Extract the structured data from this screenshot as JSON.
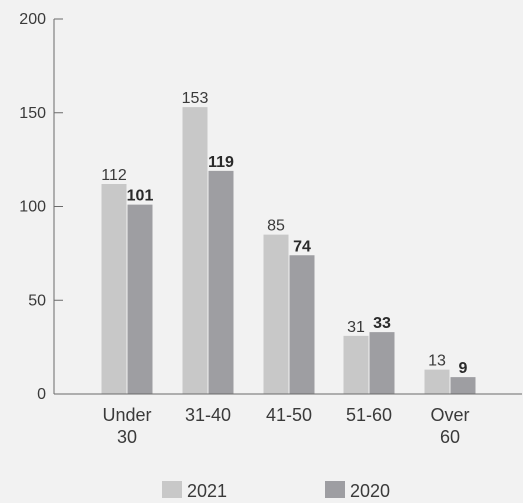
{
  "chart_data": {
    "type": "bar",
    "title": "",
    "xlabel": "",
    "ylabel": "",
    "ylim": [
      0,
      200
    ],
    "yticks": [
      0,
      50,
      100,
      150,
      200
    ],
    "categories": [
      [
        "Under",
        "30"
      ],
      [
        "31-40"
      ],
      [
        "41-50"
      ],
      [
        "51-60"
      ],
      [
        "Over",
        "60"
      ]
    ],
    "series": [
      {
        "name": "2021",
        "values": [
          112,
          153,
          85,
          31,
          13
        ],
        "color": "#c8c8c8",
        "label_bold": false
      },
      {
        "name": "2020",
        "values": [
          101,
          119,
          74,
          33,
          9
        ],
        "color": "#9e9ea2",
        "label_bold": true
      }
    ],
    "grid": false,
    "legend_position": "bottom"
  }
}
